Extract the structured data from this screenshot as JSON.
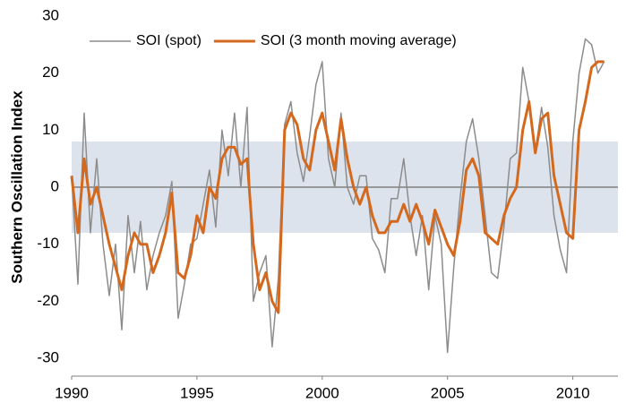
{
  "chart_data": {
    "type": "line",
    "y_label": "Southern Oscillation Index",
    "x": [
      1990,
      1990.25,
      1990.5,
      1990.75,
      1991,
      1991.25,
      1991.5,
      1991.75,
      1992,
      1992.25,
      1992.5,
      1992.75,
      1993,
      1993.25,
      1993.5,
      1993.75,
      1994,
      1994.25,
      1994.5,
      1994.75,
      1995,
      1995.25,
      1995.5,
      1995.75,
      1996,
      1996.25,
      1996.5,
      1996.75,
      1997,
      1997.25,
      1997.5,
      1997.75,
      1998,
      1998.25,
      1998.5,
      1998.75,
      1999,
      1999.25,
      1999.5,
      1999.75,
      2000,
      2000.25,
      2000.5,
      2000.75,
      2001,
      2001.25,
      2001.5,
      2001.75,
      2002,
      2002.25,
      2002.5,
      2002.75,
      2003,
      2003.25,
      2003.5,
      2003.75,
      2004,
      2004.25,
      2004.5,
      2004.75,
      2005,
      2005.25,
      2005.5,
      2005.75,
      2006,
      2006.25,
      2006.5,
      2006.75,
      2007,
      2007.25,
      2007.5,
      2007.75,
      2008,
      2008.25,
      2008.5,
      2008.75,
      2009,
      2009.25,
      2009.5,
      2009.75,
      2010,
      2010.25,
      2010.5,
      2010.75,
      2011,
      2011.25
    ],
    "series": [
      {
        "name": "SOI (spot)",
        "color": "#8c8c8c",
        "width": 1.5,
        "values": [
          2,
          -17,
          13,
          -8,
          5,
          -10,
          -19,
          -10,
          -25,
          -5,
          -15,
          -6,
          -18,
          -12,
          -8,
          -5,
          1,
          -23,
          -17,
          -10,
          -9,
          -3,
          3,
          -7,
          10,
          2,
          13,
          0,
          14,
          -20,
          -15,
          -12,
          -28,
          -16,
          11,
          15,
          6,
          1,
          9,
          18,
          22,
          5,
          0,
          13,
          0,
          -3,
          2,
          2,
          -9,
          -11,
          -15,
          -2,
          -2,
          5,
          -5,
          -12,
          -5,
          -18,
          -5,
          -10,
          -29,
          -14,
          -2,
          8,
          12,
          5,
          -5,
          -15,
          -16,
          -7,
          5,
          6,
          21,
          15,
          6,
          14,
          7,
          -5,
          -11,
          -15,
          8,
          20,
          26,
          25,
          20,
          22
        ]
      },
      {
        "name": "SOI (3 month moving average)",
        "color": "#d4691e",
        "width": 3,
        "values": [
          2,
          -8,
          5,
          -3,
          0,
          -5,
          -10,
          -14,
          -18,
          -12,
          -8,
          -10,
          -10,
          -15,
          -12,
          -8,
          -1,
          -15,
          -16,
          -12,
          -5,
          -8,
          0,
          -2,
          5,
          7,
          7,
          4,
          5,
          -10,
          -18,
          -15,
          -20,
          -22,
          10,
          13,
          11,
          5,
          3,
          10,
          13,
          8,
          3,
          12,
          5,
          0,
          -3,
          0,
          -5,
          -8,
          -8,
          -6,
          -6,
          -3,
          -6,
          -3,
          -6,
          -10,
          -4,
          -7,
          -10,
          -12,
          -6,
          3,
          5,
          2,
          -8,
          -9,
          -10,
          -5,
          -2,
          0,
          10,
          15,
          6,
          12,
          13,
          2,
          -3,
          -8,
          -9,
          10,
          15,
          21,
          22,
          22
        ]
      }
    ],
    "xlim": [
      1990,
      2011.8
    ],
    "xticks": [
      1990,
      1995,
      2000,
      2005,
      2010
    ],
    "ylim": [
      -30,
      30
    ],
    "yticks": [
      -30,
      -20,
      -10,
      0,
      10,
      20,
      30
    ],
    "shaded_range": [
      -8,
      8
    ],
    "shaded_color": "#dce3ed",
    "legend": "top-left"
  }
}
